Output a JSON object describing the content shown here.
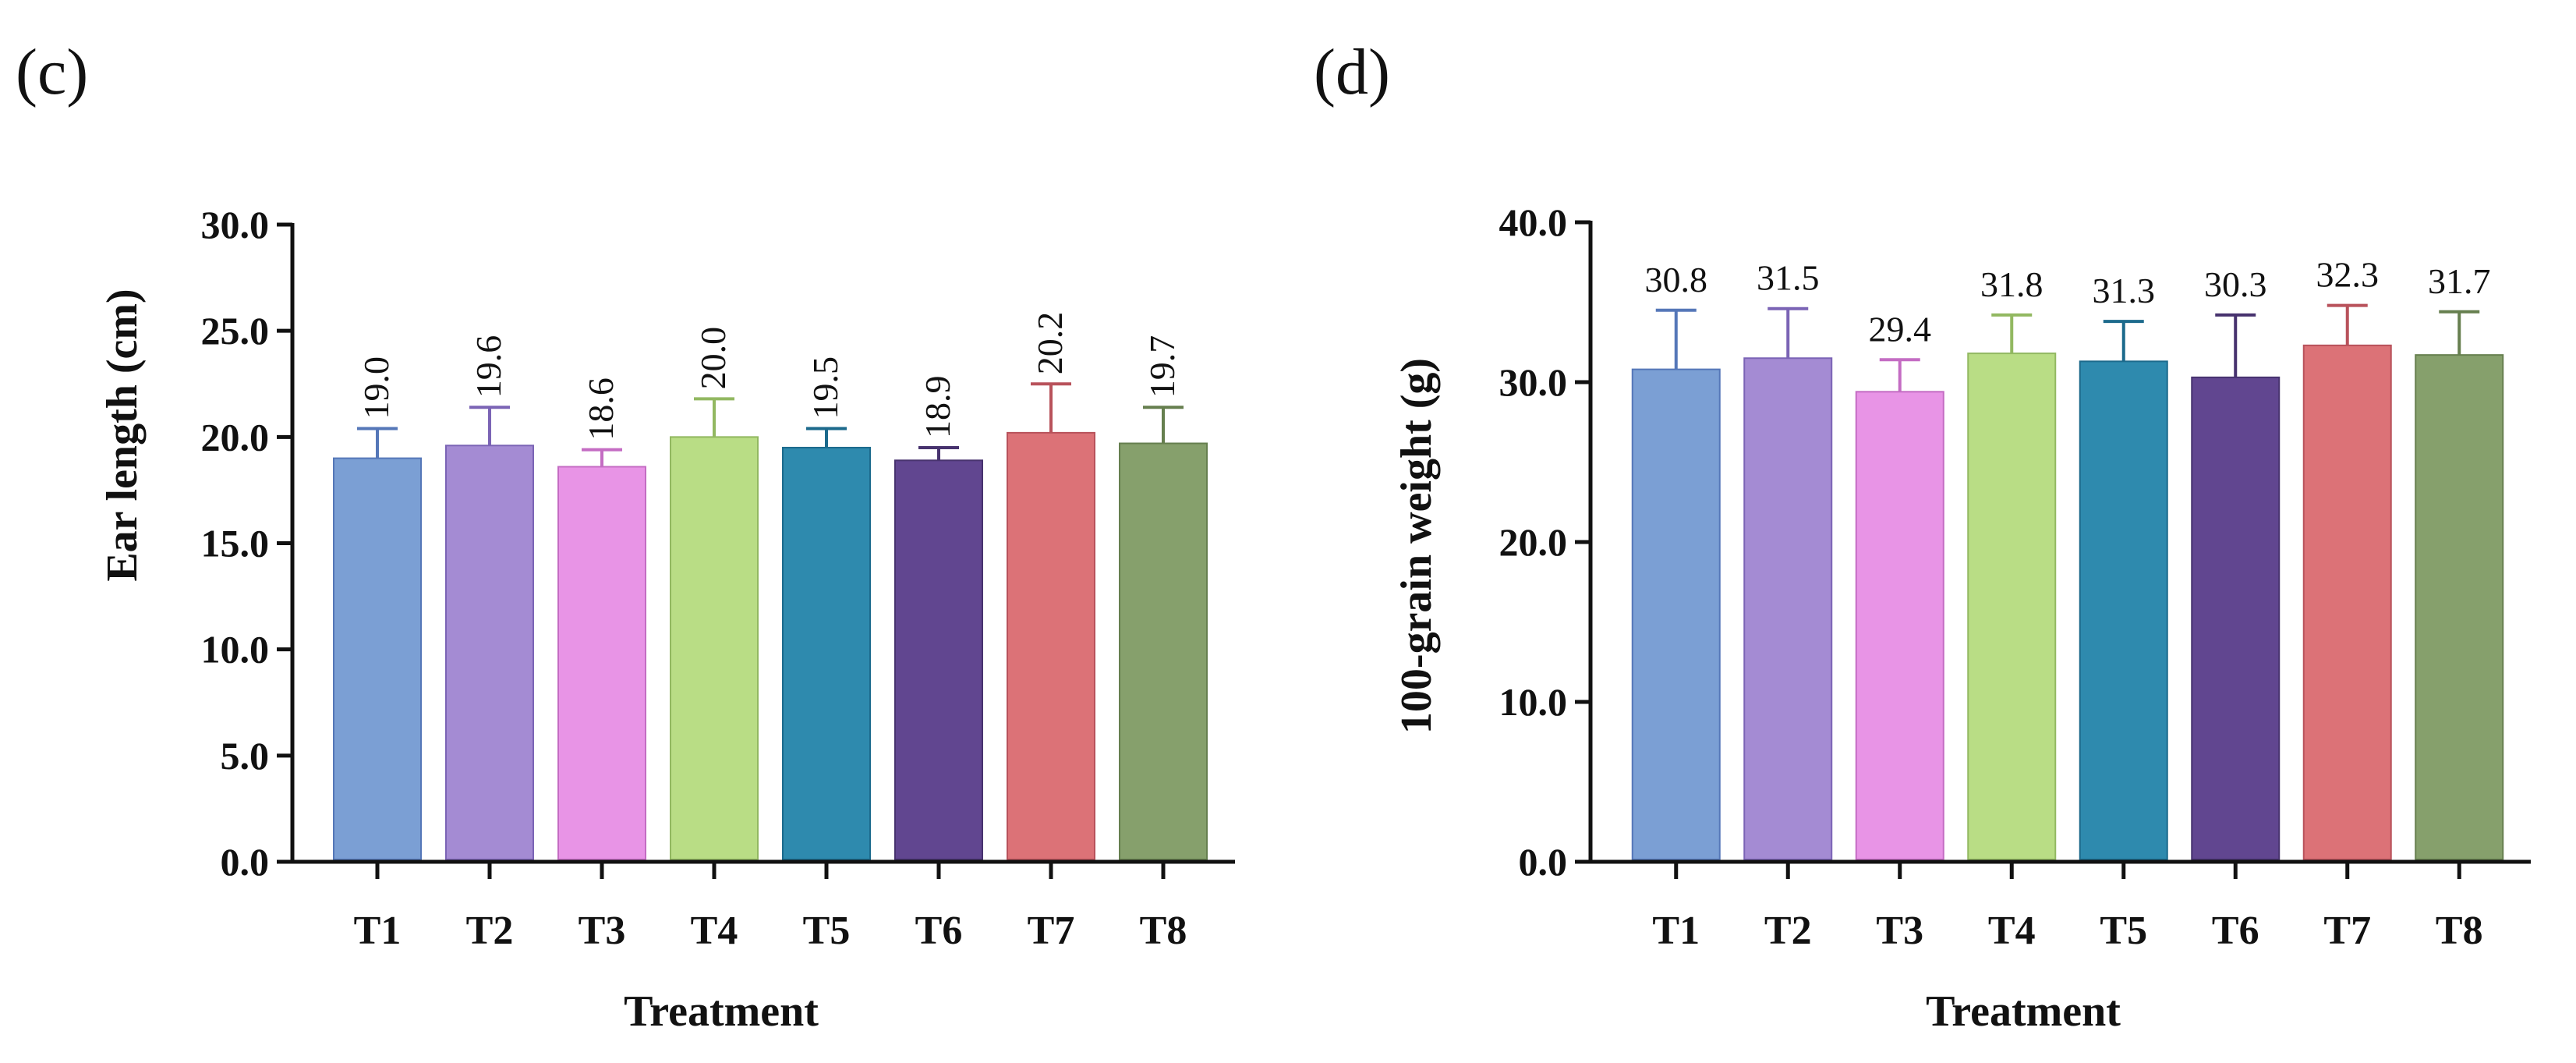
{
  "chart_data": [
    {
      "type": "bar",
      "panel_label": "(c)",
      "categories": [
        "T1",
        "T2",
        "T3",
        "T4",
        "T5",
        "T6",
        "T7",
        "T8"
      ],
      "values": [
        19.0,
        19.6,
        18.6,
        20.0,
        19.5,
        18.9,
        20.2,
        19.7
      ],
      "value_labels": [
        "19.0",
        "19.6",
        "18.6",
        "20.0",
        "19.5",
        "18.9",
        "20.2",
        "19.7"
      ],
      "error_bar_tops": [
        20.4,
        21.4,
        19.4,
        21.8,
        20.4,
        19.5,
        22.5,
        21.4
      ],
      "xlabel": "Treatment",
      "ylabel": "Ear length (cm)",
      "ylim": [
        0,
        30
      ],
      "yticks": [
        0,
        5,
        10,
        15,
        20,
        25,
        30
      ],
      "ytick_labels": [
        "0.0",
        "5.0",
        "10.0",
        "15.0",
        "20.0",
        "25.0",
        "30.0"
      ],
      "label_orientation": "vertical",
      "grid": false
    },
    {
      "type": "bar",
      "panel_label": "(d)",
      "categories": [
        "T1",
        "T2",
        "T3",
        "T4",
        "T5",
        "T6",
        "T7",
        "T8"
      ],
      "values": [
        30.8,
        31.5,
        29.4,
        31.8,
        31.3,
        30.3,
        32.3,
        31.7
      ],
      "value_labels": [
        "30.8",
        "31.5",
        "29.4",
        "31.8",
        "31.3",
        "30.3",
        "32.3",
        "31.7"
      ],
      "error_bar_tops": [
        34.5,
        34.6,
        31.4,
        34.2,
        33.8,
        34.2,
        34.8,
        34.4
      ],
      "xlabel": "Treatment",
      "ylabel": "100-grain weight (g)",
      "ylim": [
        0,
        40
      ],
      "yticks": [
        0,
        10,
        20,
        30,
        40
      ],
      "ytick_labels": [
        "0.0",
        "10.0",
        "20.0",
        "30.0",
        "40.0"
      ],
      "label_orientation": "horizontal",
      "grid": false
    }
  ],
  "bar_colors": {
    "fill": [
      "#7b9fd4",
      "#a48bd3",
      "#e894e6",
      "#b9dd85",
      "#2e8aae",
      "#614690",
      "#dc7277",
      "#86a06c"
    ],
    "stroke": [
      "#5577b8",
      "#7b64b5",
      "#c46cc3",
      "#92b861",
      "#1c6a8c",
      "#47326e",
      "#b8525b",
      "#667f4f"
    ]
  },
  "axis_color": "#111111"
}
